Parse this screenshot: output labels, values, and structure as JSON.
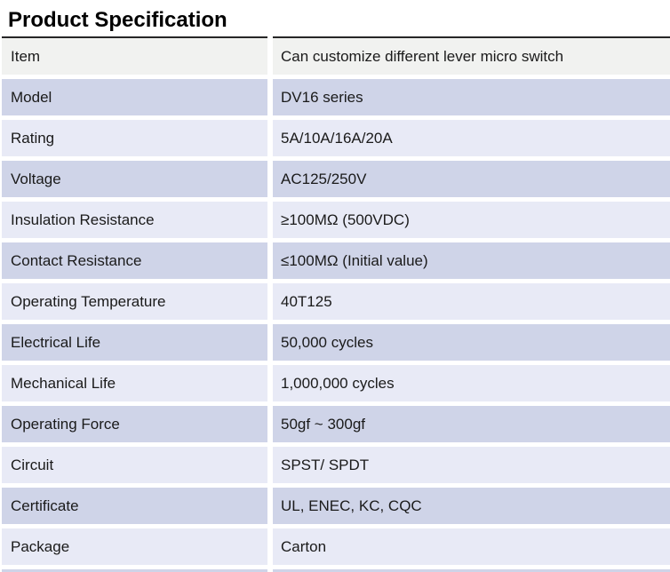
{
  "page": {
    "title": "Product Specification"
  },
  "colors": {
    "row_gray": "#f1f2f0",
    "row_lavender": "#cfd4e8",
    "row_light_lavender": "#e8eaf6",
    "top_border": "#262626",
    "text": "#1a1a1a",
    "background": "#ffffff"
  },
  "table": {
    "rows": [
      {
        "label": "Item",
        "value": "Can customize different lever micro switch",
        "variant": "gray"
      },
      {
        "label": "Model",
        "value": "DV16 series",
        "variant": "dark"
      },
      {
        "label": "Rating",
        "value": "5A/10A/16A/20A",
        "variant": "light"
      },
      {
        "label": "Voltage",
        "value": "AC125/250V",
        "variant": "dark"
      },
      {
        "label": "Insulation Resistance",
        "value": "≥100MΩ (500VDC)",
        "variant": "light"
      },
      {
        "label": "Contact Resistance",
        "value": "≤100MΩ (Initial value)",
        "variant": "dark"
      },
      {
        "label": "Operating Temperature",
        "value": "40T125",
        "variant": "light"
      },
      {
        "label": "Electrical Life",
        "value": "50,000 cycles",
        "variant": "dark"
      },
      {
        "label": "Mechanical Life",
        "value": "1,000,000 cycles",
        "variant": "light"
      },
      {
        "label": "Operating Force",
        "value": "50gf ~  300gf",
        "variant": "dark"
      },
      {
        "label": "Circuit",
        "value": "SPST/ SPDT",
        "variant": "light"
      },
      {
        "label": "Certificate",
        "value": "UL, ENEC, KC, CQC",
        "variant": "dark"
      },
      {
        "label": "Package",
        "value": "Carton",
        "variant": "light"
      }
    ]
  }
}
